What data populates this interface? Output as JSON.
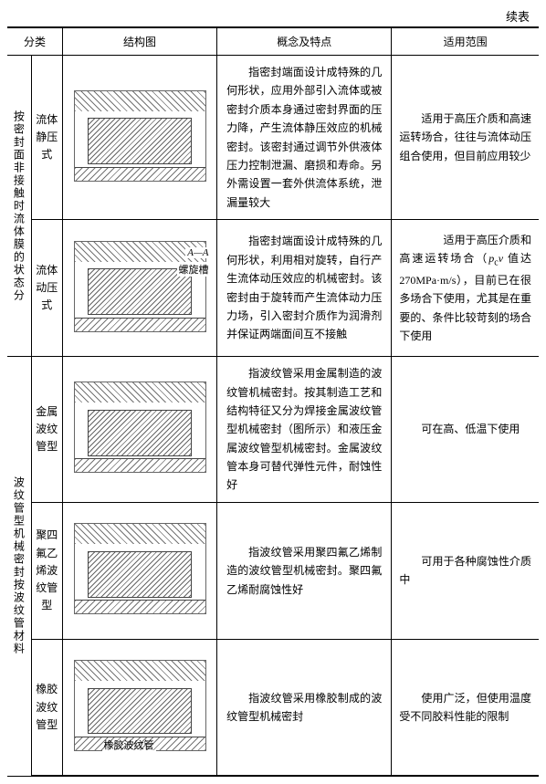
{
  "continued_label": "续表",
  "headers": {
    "category": "分类",
    "diagram": "结构图",
    "concept": "概念及特点",
    "scope": "适用范围"
  },
  "group1": {
    "category": "按密封面非接触时流体膜的状态分",
    "rows": [
      {
        "subname": "流体\n静压式",
        "concept": "指密封端面设计成特殊的几何形状，应用外部引入流体或被密封介质本身通过密封界面的压力降，产生流体静压效应的机械密封。该密封通过调节外供液体压力控制泄漏、磨损和寿命。另外需设置一套外供流体系统，泄漏量较大",
        "scope": "适用于高压介质和高速运转场合，往往与流体动压组合使用，但目前应用较少",
        "diag_label": ""
      },
      {
        "subname": "流体\n动压式",
        "concept": "指密封端面设计成特殊的几何形状，利用相对旋转，自行产生流体动压效应的机械密封。该密封由于旋转而产生流体动力压力场，引入密封介质作为润滑剂并保证两端面间互不接触",
        "scope": "适用于高压介质和高速运转场合（pcv 值达 270MPa·m/s），目前已在很多场合下使用，尤其是在重要的、条件比较苛刻的场合下使用",
        "diag_label": "螺旋槽"
      }
    ]
  },
  "group2": {
    "category": "波纹管型机械密封按波纹管材料",
    "rows": [
      {
        "subname": "金属\n波纹\n管型",
        "concept": "指波纹管采用金属制造的波纹管机械密封。按其制造工艺和结构特征又分为焊接金属波纹管型机械密封（图所示）和液压金属波纹管型机械密封。金属波纹管本身可替代弹性元件，耐蚀性好",
        "scope": "可在高、低温下使用",
        "diag_label": ""
      },
      {
        "subname": "聚四\n氟乙\n烯波\n纹管型",
        "concept": "指波纹管采用聚四氟乙烯制造的波纹管型机械密封。聚四氟乙烯耐腐蚀性好",
        "scope": "可用于各种腐蚀性介质中",
        "diag_label": ""
      },
      {
        "subname": "橡胶\n波纹\n管型",
        "concept": "指波纹管采用橡胶制成的波纹管型机械密封",
        "scope": "使用广泛，但使用温度受不同胶料性能的限制",
        "diag_label": "橡胶波纹管"
      }
    ]
  }
}
